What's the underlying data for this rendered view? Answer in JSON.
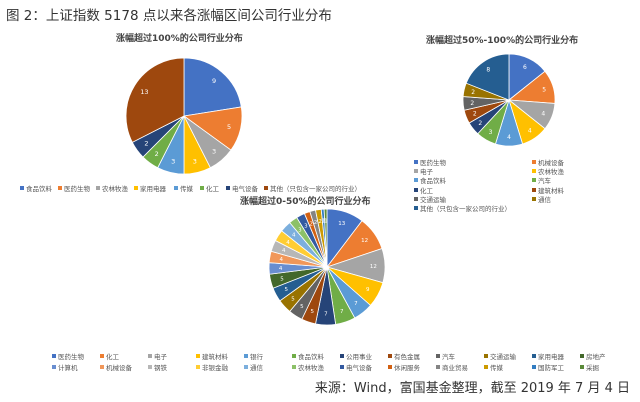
{
  "figure_title": "图 2：上证指数 5178 点以来各涨幅区间公司行业分布",
  "source": "来源：Wind，富国基金整理，截至 2019 年 7 月 4 日",
  "chart_data": [
    {
      "type": "pie",
      "title": "涨幅超过100%的公司行业分布",
      "labels": [
        "食品饮料",
        "医药生物",
        "农林牧渔",
        "家用电器",
        "传媒",
        "化工",
        "电气设备",
        "其他（只包含一家公司的行业）"
      ],
      "values": [
        9,
        5,
        3,
        3,
        3,
        2,
        2,
        13
      ],
      "colors": [
        "#4472C4",
        "#ED7D31",
        "#A5A5A5",
        "#FFC000",
        "#5B9BD5",
        "#70AD47",
        "#264478",
        "#9E480E"
      ],
      "legend_position": "bottom"
    },
    {
      "type": "pie",
      "title": "涨幅超过50%-100%的公司行业分布",
      "labels": [
        "医药生物",
        "机械设备",
        "电子",
        "农林牧渔",
        "食品饮料",
        "汽车",
        "化工",
        "建筑材料",
        "交通运输",
        "通信",
        "其他（只包含一家公司的行业）"
      ],
      "values": [
        6,
        5,
        4,
        4,
        4,
        3,
        2,
        2,
        2,
        2,
        8
      ],
      "colors": [
        "#4472C4",
        "#ED7D31",
        "#A5A5A5",
        "#FFC000",
        "#5B9BD5",
        "#70AD47",
        "#264478",
        "#9E480E",
        "#636363",
        "#997300",
        "#255E91"
      ],
      "legend_position": "bottom"
    },
    {
      "type": "pie",
      "title": "涨幅超过0-50%的公司行业分布",
      "labels": [
        "医药生物",
        "化工",
        "电子",
        "建筑材料",
        "银行",
        "食品饮料",
        "公用事业",
        "有色金属",
        "汽车",
        "交通运输",
        "家用电器",
        "房地产",
        "计算机",
        "机械设备",
        "钢铁",
        "非银金融",
        "通信",
        "农林牧渔",
        "电气设备",
        "休闲服务",
        "商业贸易",
        "传媒",
        "国防军工",
        "采掘"
      ],
      "values": [
        13,
        12,
        12,
        9,
        7,
        7,
        7,
        5,
        5,
        5,
        5,
        5,
        4,
        4,
        4,
        4,
        4,
        3,
        3,
        2,
        2,
        2,
        1,
        1
      ],
      "colors": [
        "#4472C4",
        "#ED7D31",
        "#A5A5A5",
        "#FFC000",
        "#5B9BD5",
        "#70AD47",
        "#264478",
        "#9E480E",
        "#636363",
        "#997300",
        "#255E91",
        "#43682B",
        "#698ED0",
        "#F1975A",
        "#B7B7B7",
        "#FFCD33",
        "#7CAFDD",
        "#8CC168",
        "#335AA1",
        "#D26012",
        "#848484",
        "#CC9A00",
        "#327DC2",
        "#5A8A39"
      ],
      "legend_position": "bottom"
    }
  ]
}
